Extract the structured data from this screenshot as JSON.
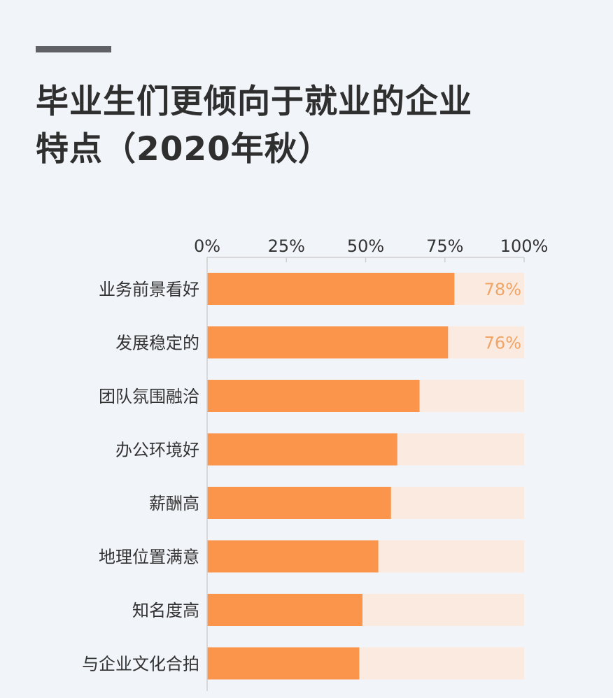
{
  "title_lines": [
    "毕业生们更倾向于就业的企业",
    "特点（2020年秋）"
  ],
  "colors": {
    "bar": "#fb954c",
    "track": "#fbeae0",
    "axis": "#cfcfcf",
    "value_label": "#f0a566",
    "text": "#333333"
  },
  "chart_data": {
    "type": "bar",
    "orientation": "horizontal",
    "title": "毕业生们更倾向于就业的企业特点（2020年秋）",
    "xlim": [
      0,
      100
    ],
    "x_ticks": [
      0,
      25,
      50,
      75,
      100
    ],
    "x_tick_labels": [
      "0%",
      "25%",
      "50%",
      "75%",
      "100%"
    ],
    "x_axis_position": "top",
    "grid": false,
    "categories": [
      "业务前景看好",
      "发展稳定的",
      "团队氛围融洽",
      "办公环境好",
      "薪酬高",
      "地理位置满意",
      "知名度高",
      "与企业文化合拍"
    ],
    "values": [
      78,
      76,
      67,
      60,
      58,
      54,
      49,
      48
    ],
    "data_labels": [
      "78%",
      "76%",
      "",
      "",
      "",
      "",
      "",
      ""
    ]
  }
}
